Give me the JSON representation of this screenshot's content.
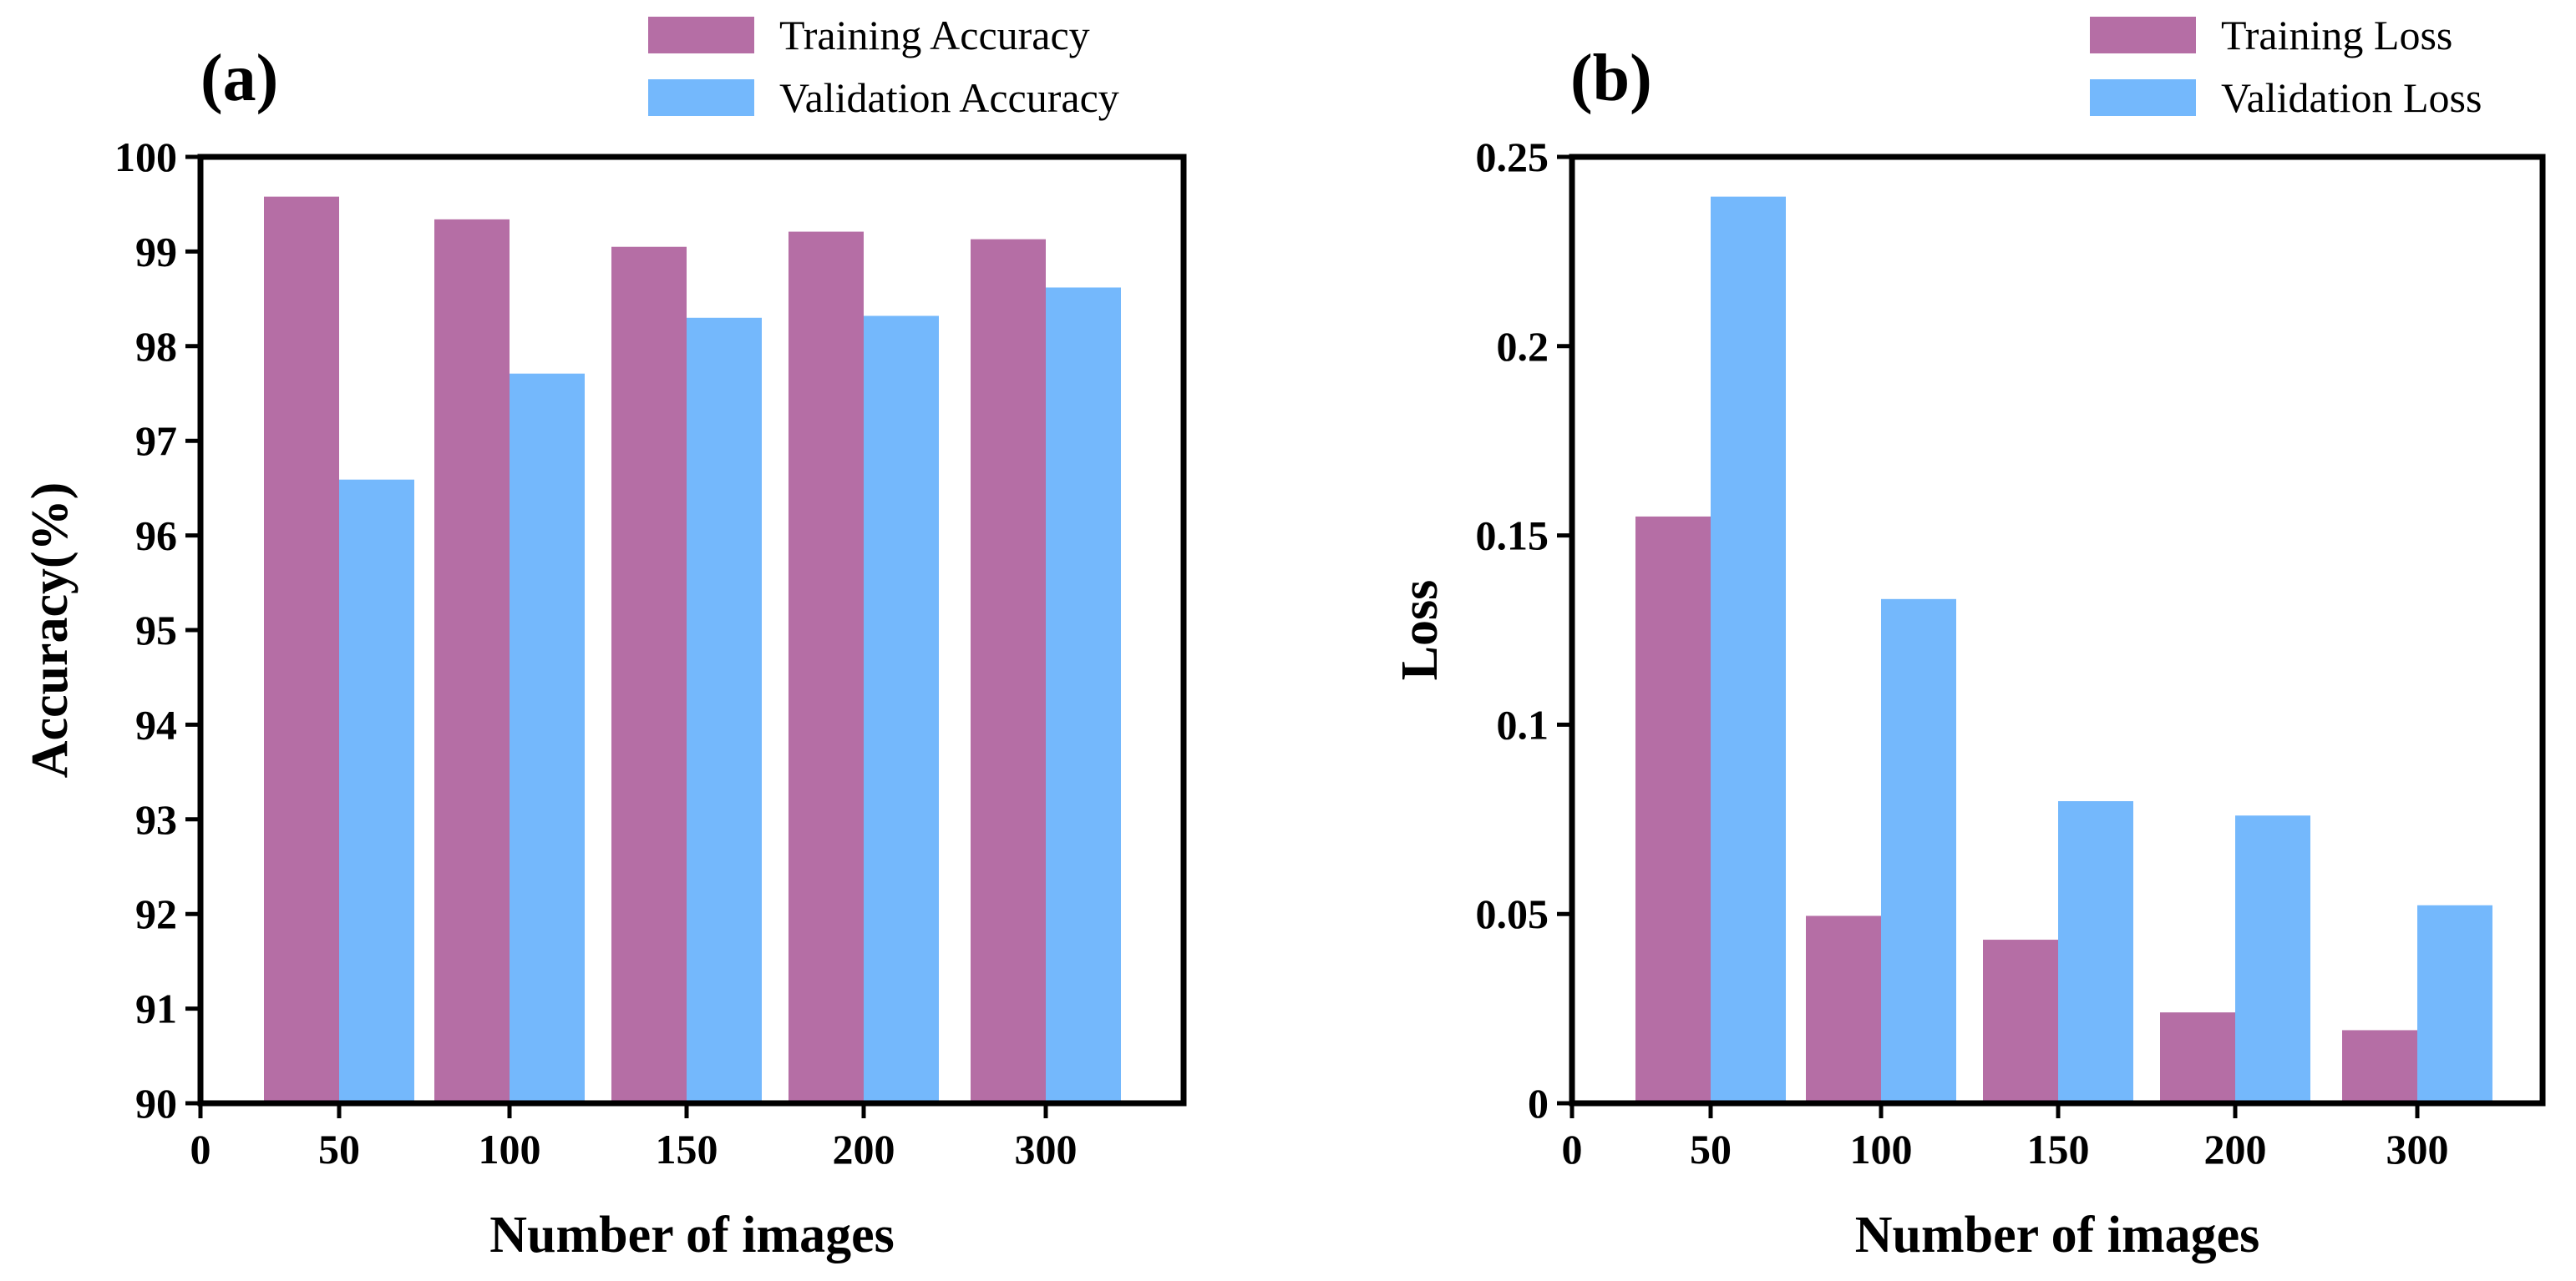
{
  "chart_data": [
    {
      "panel_label": "(a)",
      "type": "bar",
      "categories": [
        "50",
        "100",
        "150",
        "200",
        "300"
      ],
      "series": [
        {
          "name": "Training Accuracy",
          "color": "#b56ea5",
          "values": [
            99.58,
            99.34,
            99.05,
            99.21,
            99.13
          ]
        },
        {
          "name": "Validation Accuracy",
          "color": "#74b8fc",
          "values": [
            96.59,
            97.71,
            98.3,
            98.32,
            98.62
          ]
        }
      ],
      "xlabel": "Number of images",
      "ylabel": "Accuracy(%)",
      "ylim": [
        90,
        100
      ],
      "yticks": [
        "90",
        "91",
        "92",
        "93",
        "94",
        "95",
        "96",
        "97",
        "98",
        "99",
        "100"
      ],
      "x_origin_label": "0",
      "grid": false,
      "legend_position": "top-right"
    },
    {
      "panel_label": "(b)",
      "type": "bar",
      "categories": [
        "50",
        "100",
        "150",
        "200",
        "300"
      ],
      "series": [
        {
          "name": "Training Loss",
          "color": "#b56ea5",
          "values": [
            0.155,
            0.0495,
            0.0432,
            0.024,
            0.0193
          ]
        },
        {
          "name": "Validation Loss",
          "color": "#74b8fc",
          "values": [
            0.2395,
            0.1332,
            0.0798,
            0.076,
            0.0523
          ]
        }
      ],
      "xlabel": "Number of images",
      "ylabel": "Loss",
      "ylim": [
        0,
        0.25
      ],
      "yticks": [
        "0",
        "0.05",
        "0.1",
        "0.15",
        "0.2",
        "0.25"
      ],
      "x_origin_label": "0",
      "grid": false,
      "legend_position": "top-right"
    }
  ]
}
